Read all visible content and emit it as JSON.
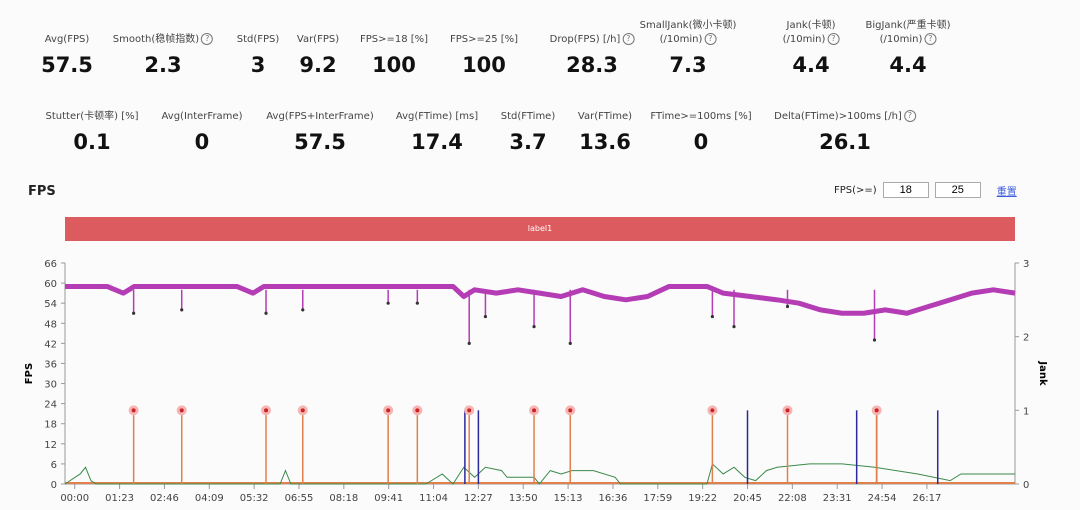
{
  "metrics_row1": [
    {
      "label": "Avg(FPS)",
      "value": "57.5",
      "help": false
    },
    {
      "label": "Smooth(稳帧指数)",
      "value": "2.3",
      "help": true
    },
    {
      "label": "Std(FPS)",
      "value": "3",
      "help": false
    },
    {
      "label": "Var(FPS)",
      "value": "9.2",
      "help": false
    },
    {
      "label": "FPS>=18 [%]",
      "value": "100",
      "help": false
    },
    {
      "label": "FPS>=25 [%]",
      "value": "100",
      "help": false
    },
    {
      "label": "Drop(FPS) [/h]",
      "value": "28.3",
      "help": true
    },
    {
      "label": "SmallJank(微小卡顿)\n(/10min)",
      "value": "7.3",
      "help": true
    },
    {
      "label": "Jank(卡顿)\n(/10min)",
      "value": "4.4",
      "help": true
    },
    {
      "label": "BigJank(严重卡顿)\n(/10min)",
      "value": "4.4",
      "help": true
    }
  ],
  "metrics_row2": [
    {
      "label": "Stutter(卡顿率) [%]",
      "value": "0.1",
      "help": false
    },
    {
      "label": "Avg(InterFrame)",
      "value": "0",
      "help": false
    },
    {
      "label": "Avg(FPS+InterFrame)",
      "value": "57.5",
      "help": false
    },
    {
      "label": "Avg(FTime) [ms]",
      "value": "17.4",
      "help": false
    },
    {
      "label": "Std(FTime)",
      "value": "3.7",
      "help": false
    },
    {
      "label": "Var(FTime)",
      "value": "13.6",
      "help": false
    },
    {
      "label": "FTime>=100ms [%]",
      "value": "0",
      "help": false
    },
    {
      "label": "Delta(FTime)>100ms [/h]",
      "value": "26.1",
      "help": true
    }
  ],
  "section_title": "FPS",
  "controls": {
    "label": "FPS(>=)",
    "threshold1": "18",
    "threshold2": "25",
    "reset_label": "重置"
  },
  "banner_label": "label1",
  "chart_data": {
    "type": "line",
    "ylabel": "FPS",
    "y2label": "Jank",
    "ylim": [
      0,
      66
    ],
    "yticks": [
      "0",
      "6",
      "12",
      "18",
      "24",
      "30",
      "36",
      "42",
      "48",
      "54",
      "60",
      "66"
    ],
    "y2lim": [
      0,
      3
    ],
    "y2ticks": [
      "0",
      "1",
      "2",
      "3"
    ],
    "xlim_seconds": [
      -18,
      1740
    ],
    "xticks": [
      "00:00",
      "01:23",
      "02:46",
      "04:09",
      "05:32",
      "06:55",
      "08:18",
      "09:41",
      "11:04",
      "12:27",
      "13:50",
      "15:13",
      "16:36",
      "17:59",
      "19:22",
      "20:45",
      "22:08",
      "23:31",
      "24:54",
      "26:17"
    ],
    "colors": {
      "fps": "#b43cb4",
      "interframe": "#3a8a4a",
      "jank": "#e0804a",
      "bigjank": "#2a2a9a",
      "marker": "#e33"
    },
    "fps_series": [
      [
        -18,
        59
      ],
      [
        60,
        59
      ],
      [
        90,
        57
      ],
      [
        110,
        59
      ],
      [
        300,
        59
      ],
      [
        330,
        57
      ],
      [
        350,
        59
      ],
      [
        700,
        59
      ],
      [
        720,
        56
      ],
      [
        740,
        58
      ],
      [
        780,
        57
      ],
      [
        820,
        58
      ],
      [
        860,
        57
      ],
      [
        900,
        56
      ],
      [
        940,
        58
      ],
      [
        980,
        56
      ],
      [
        1020,
        55
      ],
      [
        1060,
        56
      ],
      [
        1100,
        59
      ],
      [
        1170,
        59
      ],
      [
        1200,
        57
      ],
      [
        1250,
        56
      ],
      [
        1300,
        55
      ],
      [
        1340,
        54
      ],
      [
        1380,
        52
      ],
      [
        1420,
        51
      ],
      [
        1460,
        51
      ],
      [
        1500,
        52
      ],
      [
        1540,
        51
      ],
      [
        1580,
        53
      ],
      [
        1620,
        55
      ],
      [
        1660,
        57
      ],
      [
        1700,
        58
      ],
      [
        1740,
        57
      ]
    ],
    "fps_dips": [
      [
        109,
        51
      ],
      [
        198,
        52
      ],
      [
        354,
        51
      ],
      [
        422,
        52
      ],
      [
        580,
        54
      ],
      [
        634,
        54
      ],
      [
        730,
        42
      ],
      [
        760,
        50
      ],
      [
        850,
        47
      ],
      [
        917,
        42
      ],
      [
        1180,
        50
      ],
      [
        1220,
        47
      ],
      [
        1319,
        53
      ],
      [
        1480,
        43
      ]
    ],
    "interframe_series": [
      [
        -18,
        0
      ],
      [
        10,
        3
      ],
      [
        20,
        5
      ],
      [
        30,
        1
      ],
      [
        40,
        0
      ],
      [
        380,
        0
      ],
      [
        390,
        4
      ],
      [
        400,
        0
      ],
      [
        650,
        0
      ],
      [
        680,
        3
      ],
      [
        700,
        0
      ],
      [
        720,
        5
      ],
      [
        740,
        2
      ],
      [
        760,
        5
      ],
      [
        790,
        4
      ],
      [
        800,
        2
      ],
      [
        850,
        2
      ],
      [
        860,
        0
      ],
      [
        880,
        4
      ],
      [
        900,
        3
      ],
      [
        920,
        4
      ],
      [
        960,
        4
      ],
      [
        1000,
        2
      ],
      [
        1010,
        0
      ],
      [
        1170,
        0
      ],
      [
        1180,
        6
      ],
      [
        1200,
        3
      ],
      [
        1220,
        5
      ],
      [
        1240,
        2
      ],
      [
        1260,
        1
      ],
      [
        1280,
        4
      ],
      [
        1300,
        5
      ],
      [
        1360,
        6
      ],
      [
        1420,
        6
      ],
      [
        1480,
        5
      ],
      [
        1560,
        3
      ],
      [
        1620,
        1
      ],
      [
        1640,
        3
      ],
      [
        1740,
        3
      ]
    ],
    "jank_events_seconds": [
      109,
      198,
      354,
      422,
      580,
      634,
      730,
      850,
      917,
      1180,
      1319,
      1484
    ],
    "bigjank_events_seconds": [
      722,
      747,
      917,
      1245,
      1447,
      1484,
      1597
    ]
  }
}
